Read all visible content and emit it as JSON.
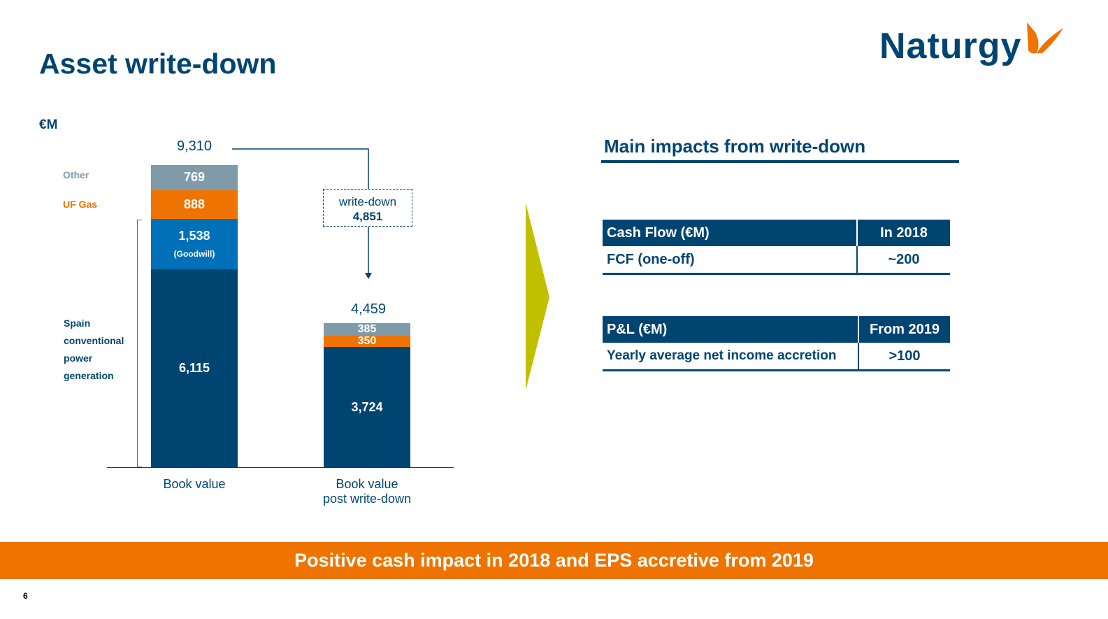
{
  "title": "Asset write-down",
  "logo": {
    "text": "Naturgy"
  },
  "colors": {
    "navy": "#004571",
    "goodwill": "#0070b8",
    "orange": "#ef7300",
    "grey": "#7f9aa9",
    "arrow": "#c0c000"
  },
  "chart_data": {
    "type": "bar",
    "stacked": true,
    "unit": "€M",
    "categories": [
      "Book value",
      "Book value post write-down"
    ],
    "category_labels": [
      [
        "Book value"
      ],
      [
        "Book value",
        "post write-down"
      ]
    ],
    "totals": [
      "9,310",
      "4,459"
    ],
    "series": [
      {
        "name": "Spain conventional power generation",
        "values": [
          6115,
          3724
        ],
        "labels": [
          "6,115",
          "3,724"
        ],
        "color": "#004571"
      },
      {
        "name": "Goodwill",
        "values": [
          1538,
          0
        ],
        "labels": [
          "1,538",
          ""
        ],
        "sublabel": "(Goodwill)",
        "color": "#0070b8"
      },
      {
        "name": "UF Gas",
        "values": [
          888,
          350
        ],
        "labels": [
          "888",
          "350"
        ],
        "color": "#ef7300"
      },
      {
        "name": "Other",
        "values": [
          769,
          385
        ],
        "labels": [
          "769",
          "385"
        ],
        "color": "#7f9aa9"
      }
    ],
    "legend_labels": {
      "other": "Other",
      "uf_gas": "UF Gas",
      "spain": [
        "Spain",
        "conventional",
        "power",
        "generation"
      ]
    },
    "annotation": {
      "line1": "write-down",
      "line2": "4,851"
    }
  },
  "impacts": {
    "heading": "Main impacts from write-down",
    "cash_flow": {
      "headers": [
        "Cash Flow (€M)",
        "In 2018"
      ],
      "row": [
        "FCF (one-off)",
        "~200"
      ]
    },
    "pnl": {
      "headers": [
        "P&L (€M)",
        "From 2019"
      ],
      "row": [
        "Yearly average net income accretion",
        ">100"
      ]
    }
  },
  "banner": "Positive cash impact in 2018 and EPS accretive from 2019",
  "page_number": "6"
}
